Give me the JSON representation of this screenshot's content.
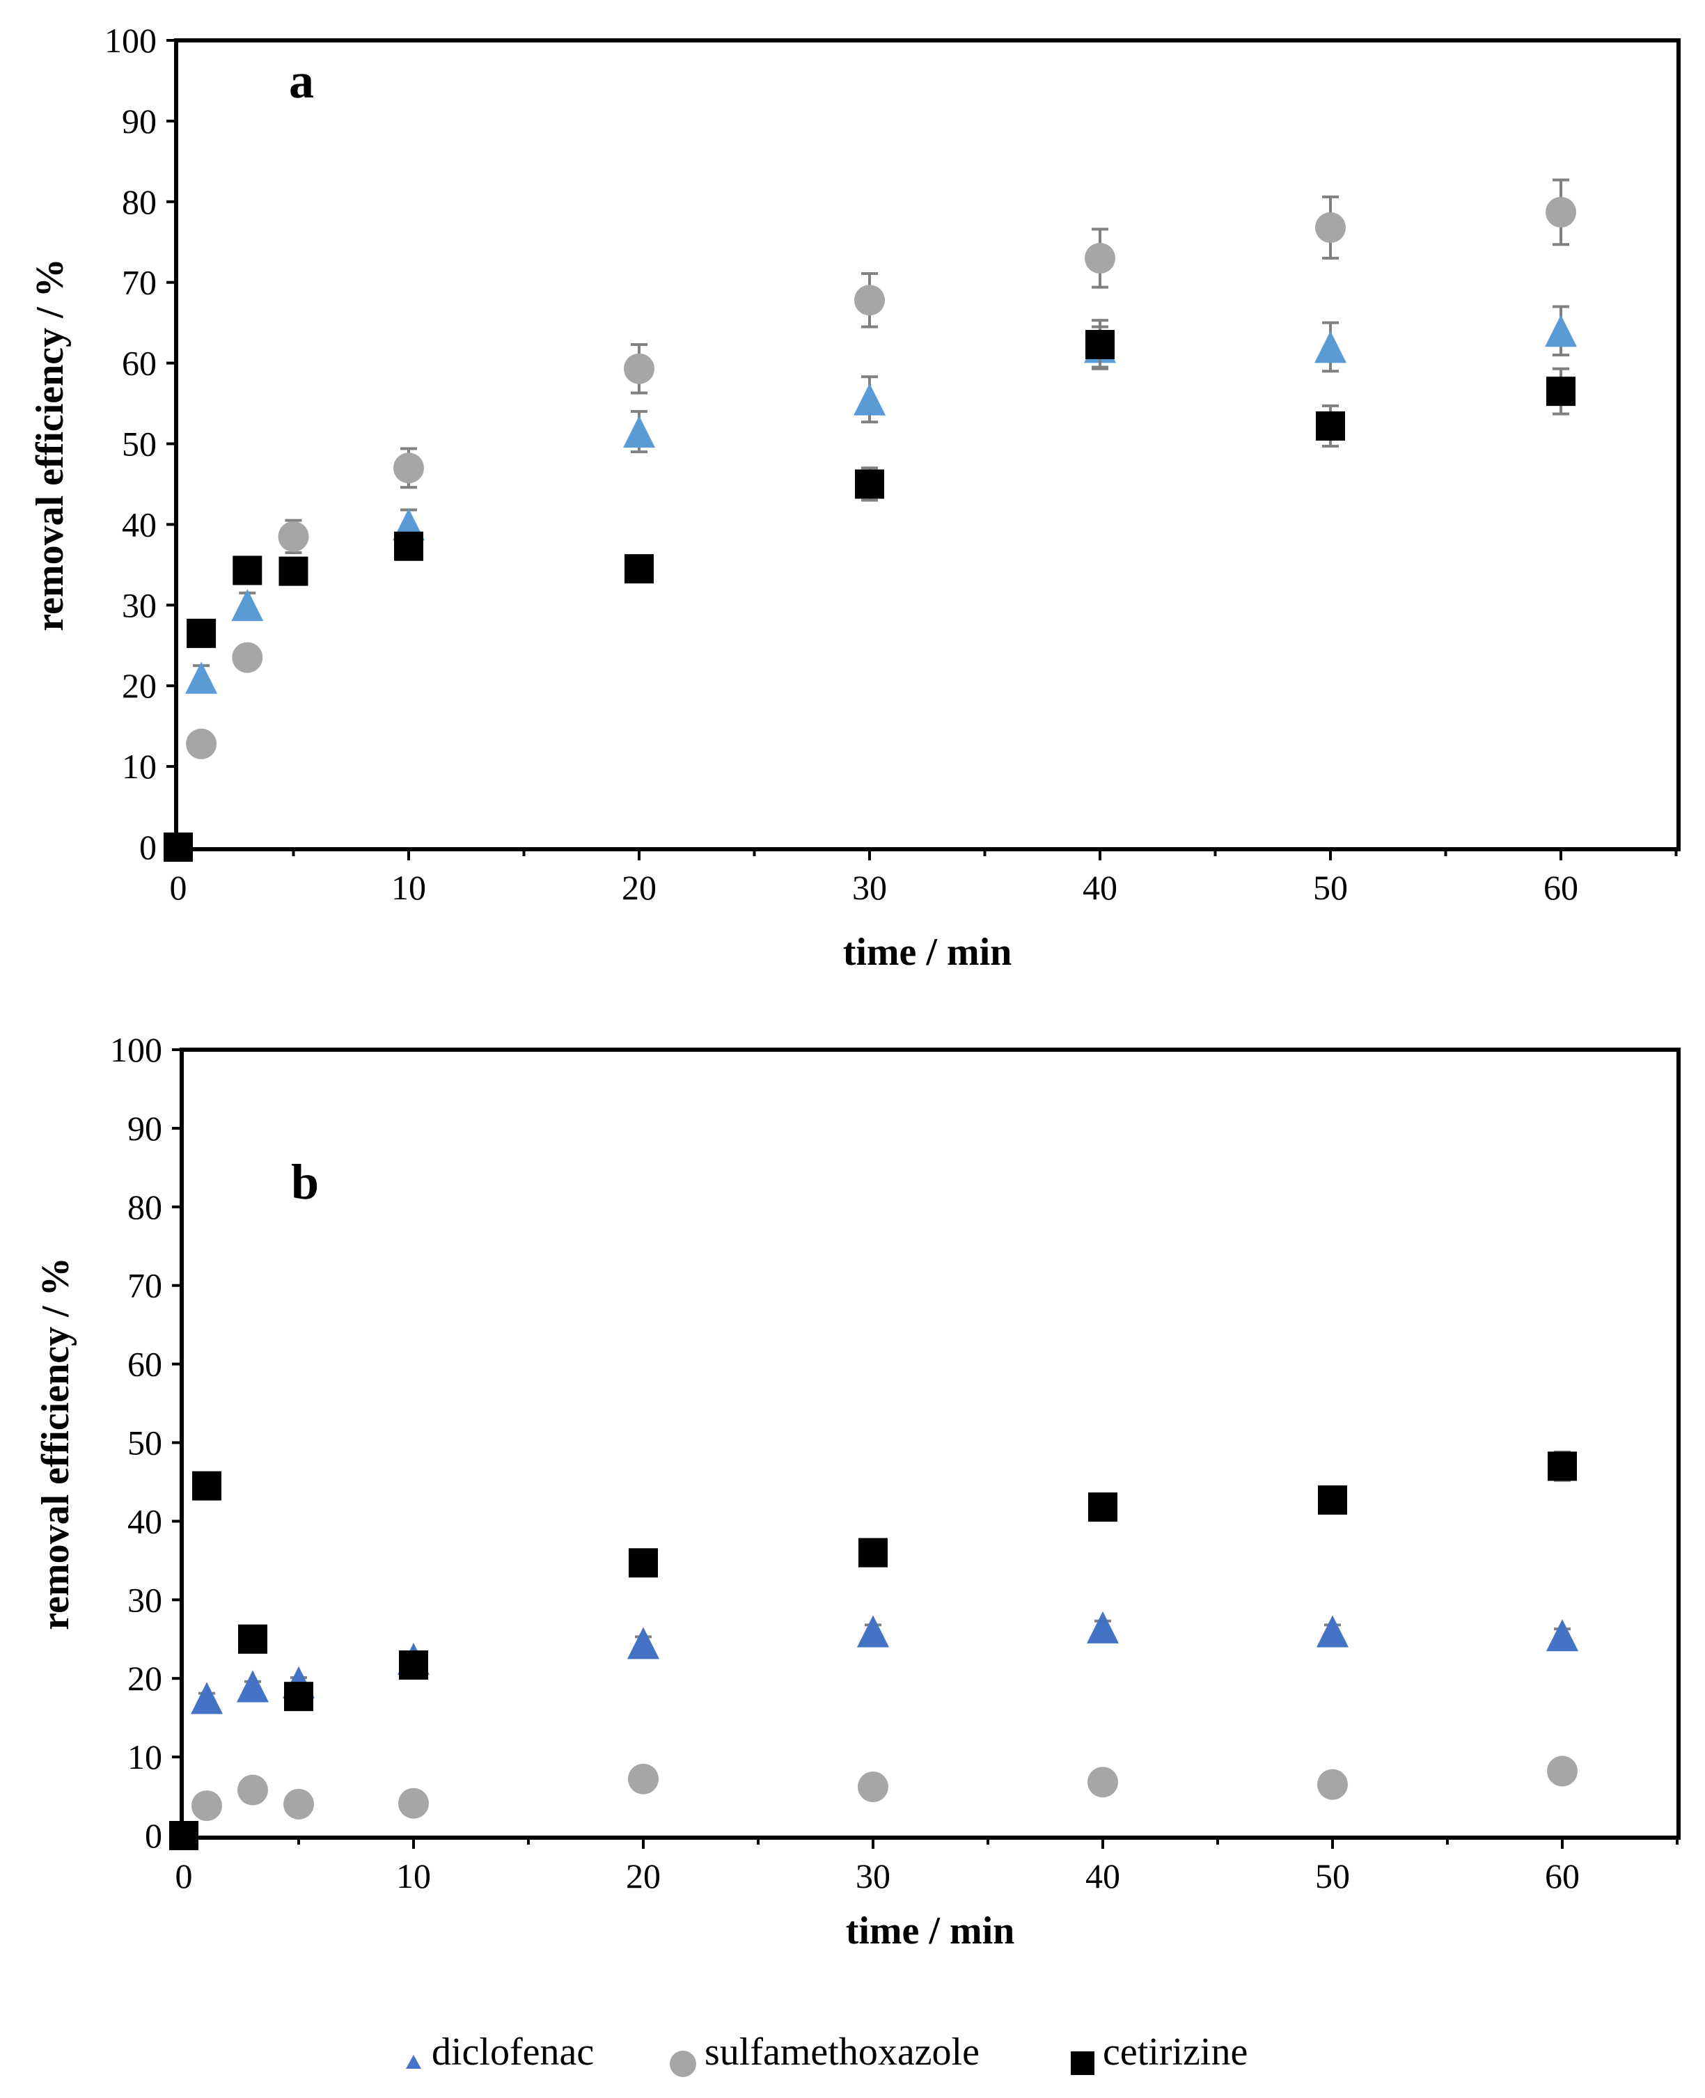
{
  "colors": {
    "diclofenac_a": "#5b9bd5",
    "diclofenac_b": "#4472c4",
    "sulfamethoxazole": "#a6a6a6",
    "cetirizine": "#000000",
    "errorbar": "#808080"
  },
  "legend": {
    "items": [
      {
        "label": "diclofenac",
        "icon": "triangle-icon"
      },
      {
        "label": "sulfamethoxazole",
        "icon": "circle-icon"
      },
      {
        "label": "cetirizine",
        "icon": "square-icon"
      }
    ]
  },
  "chart_data": [
    {
      "type": "scatter",
      "panel_label": "a",
      "xlabel": "time / min",
      "ylabel": "removal efficiency / %",
      "xlim": [
        0,
        65
      ],
      "ylim": [
        0,
        100
      ],
      "xticks": [
        0,
        10,
        20,
        30,
        40,
        50,
        60
      ],
      "yticks": [
        0,
        10,
        20,
        30,
        40,
        50,
        60,
        70,
        80,
        90,
        100
      ],
      "series": [
        {
          "name": "diclofenac",
          "marker": "triangle",
          "color": "#5b9bd5",
          "x": [
            1,
            3,
            10,
            20,
            30,
            40,
            50,
            60
          ],
          "y": [
            21,
            30,
            40,
            51.5,
            55.5,
            62,
            62,
            64
          ],
          "err": [
            1.5,
            1.5,
            1.8,
            2.5,
            2.8,
            2.5,
            3,
            3
          ]
        },
        {
          "name": "sulfamethoxazole",
          "marker": "circle",
          "color": "#a6a6a6",
          "x": [
            1,
            3,
            5,
            10,
            20,
            30,
            40,
            50,
            60
          ],
          "y": [
            12.8,
            23.5,
            38.5,
            47,
            59.3,
            67.8,
            73,
            76.8,
            78.7
          ],
          "err": [
            1,
            1.2,
            2,
            2.4,
            3,
            3.3,
            3.6,
            3.8,
            4
          ]
        },
        {
          "name": "cetirizine",
          "marker": "square",
          "color": "#000000",
          "x": [
            0,
            1,
            3,
            5,
            10,
            20,
            30,
            40,
            50,
            60
          ],
          "y": [
            0,
            26.5,
            34.3,
            34.2,
            37.3,
            34.5,
            45,
            62.3,
            52.2,
            56.5
          ],
          "err": [
            0,
            1.2,
            1.2,
            1.2,
            1.5,
            1,
            2,
            3,
            2.5,
            2.8
          ]
        }
      ]
    },
    {
      "type": "scatter",
      "panel_label": "b",
      "xlabel": "time / min",
      "ylabel": "removal efficiency / %",
      "xlim": [
        0,
        65
      ],
      "ylim": [
        0,
        100
      ],
      "xticks": [
        0,
        10,
        20,
        30,
        40,
        50,
        60
      ],
      "yticks": [
        0,
        10,
        20,
        30,
        40,
        50,
        60,
        70,
        80,
        90,
        100
      ],
      "series": [
        {
          "name": "diclofenac",
          "marker": "triangle",
          "color": "#4472c4",
          "x": [
            1,
            3,
            5,
            10,
            20,
            30,
            40,
            50,
            60
          ],
          "y": [
            17.5,
            19,
            19.5,
            22.5,
            24.5,
            26,
            26.5,
            26,
            25.5
          ],
          "err": [
            0.6,
            0.6,
            0.6,
            0.7,
            0.8,
            0.8,
            0.8,
            0.8,
            0.8
          ]
        },
        {
          "name": "sulfamethoxazole",
          "marker": "circle",
          "color": "#a6a6a6",
          "x": [
            1,
            3,
            5,
            10,
            20,
            30,
            40,
            50,
            60
          ],
          "y": [
            3.8,
            5.8,
            4,
            4.1,
            7.2,
            6.2,
            6.8,
            6.5,
            8.2
          ],
          "err": [
            0.4,
            0.4,
            0.4,
            0.4,
            0.5,
            0.5,
            0.5,
            0.5,
            0.5
          ]
        },
        {
          "name": "cetirizine",
          "marker": "square",
          "color": "#000000",
          "x": [
            0,
            1,
            3,
            5,
            10,
            20,
            30,
            40,
            50,
            60
          ],
          "y": [
            0,
            44.5,
            25,
            17.7,
            21.7,
            34.7,
            36,
            41.8,
            42.7,
            47
          ],
          "err": [
            0,
            1.5,
            1,
            1,
            1,
            1,
            1,
            1.2,
            1.2,
            1.8
          ]
        }
      ]
    }
  ]
}
